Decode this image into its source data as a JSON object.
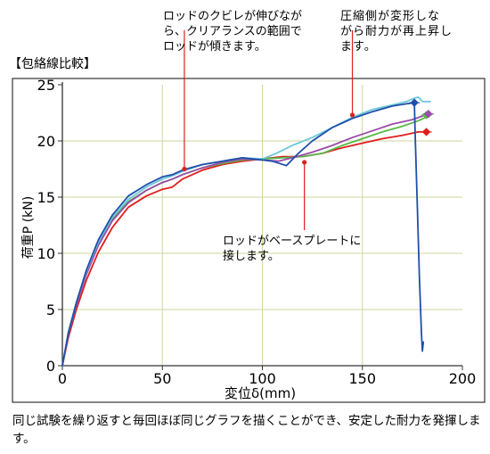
{
  "chart_data": {
    "type": "line",
    "title": "【包絡線比較】",
    "xlabel": "変位δ(mm)",
    "ylabel": "荷重P (kN)",
    "xlim": [
      0,
      200
    ],
    "ylim": [
      0,
      25
    ],
    "x_ticks": [
      "0",
      "50",
      "100",
      "150",
      "200"
    ],
    "y_ticks": [
      "0",
      "5",
      "10",
      "15",
      "20",
      "25"
    ],
    "grid": true,
    "series": [
      {
        "color": "#e01e1e",
        "points": [
          [
            0,
            0
          ],
          [
            3,
            2.5
          ],
          [
            7,
            5
          ],
          [
            12,
            7.6
          ],
          [
            18,
            10.1
          ],
          [
            25,
            12.3
          ],
          [
            33,
            14.1
          ],
          [
            42,
            15.1
          ],
          [
            50,
            15.7
          ],
          [
            55,
            15.9
          ],
          [
            60,
            16.6
          ],
          [
            70,
            17.4
          ],
          [
            80,
            17.9
          ],
          [
            90,
            18.2
          ],
          [
            100,
            18.4
          ],
          [
            110,
            18.6
          ],
          [
            120,
            18.6
          ],
          [
            130,
            18.9
          ],
          [
            140,
            19.4
          ],
          [
            150,
            19.8
          ],
          [
            160,
            20.2
          ],
          [
            170,
            20.5
          ],
          [
            178,
            20.8
          ],
          [
            183,
            20.8
          ]
        ]
      },
      {
        "color": "#58b848",
        "points": [
          [
            0,
            0
          ],
          [
            3,
            3
          ],
          [
            7,
            5.6
          ],
          [
            12,
            8.3
          ],
          [
            18,
            10.9
          ],
          [
            25,
            13
          ],
          [
            33,
            14.6
          ],
          [
            42,
            15.6
          ],
          [
            50,
            16.3
          ],
          [
            55,
            16.6
          ],
          [
            60,
            17
          ],
          [
            70,
            17.6
          ],
          [
            80,
            18
          ],
          [
            90,
            18.3
          ],
          [
            100,
            18.4
          ],
          [
            110,
            18.5
          ],
          [
            120,
            18.6
          ],
          [
            130,
            18.9
          ],
          [
            140,
            19.6
          ],
          [
            150,
            20.2
          ],
          [
            160,
            20.8
          ],
          [
            170,
            21.3
          ],
          [
            178,
            21.8
          ],
          [
            183,
            22.2
          ]
        ]
      },
      {
        "color": "#9a4ca8",
        "points": [
          [
            0,
            0
          ],
          [
            3,
            2.8
          ],
          [
            7,
            5.4
          ],
          [
            12,
            8.1
          ],
          [
            18,
            10.7
          ],
          [
            25,
            12.9
          ],
          [
            33,
            14.5
          ],
          [
            42,
            15.6
          ],
          [
            50,
            16.3
          ],
          [
            55,
            16.6
          ],
          [
            60,
            17
          ],
          [
            70,
            17.6
          ],
          [
            80,
            18.1
          ],
          [
            90,
            18.4
          ],
          [
            100,
            18.3
          ],
          [
            108,
            18.2
          ],
          [
            115,
            18.5
          ],
          [
            125,
            19
          ],
          [
            135,
            19.6
          ],
          [
            145,
            20.3
          ],
          [
            155,
            20.9
          ],
          [
            165,
            21.5
          ],
          [
            175,
            21.9
          ],
          [
            183,
            22.4
          ]
        ]
      },
      {
        "color": "#6cc8dc",
        "points": [
          [
            0,
            0
          ],
          [
            3,
            2.9
          ],
          [
            7,
            5.6
          ],
          [
            12,
            8.4
          ],
          [
            18,
            11
          ],
          [
            25,
            13.2
          ],
          [
            33,
            14.8
          ],
          [
            42,
            15.9
          ],
          [
            50,
            16.6
          ],
          [
            55,
            16.9
          ],
          [
            60,
            17.3
          ],
          [
            70,
            17.9
          ],
          [
            80,
            18.2
          ],
          [
            90,
            18.5
          ],
          [
            100,
            18.4
          ],
          [
            107,
            18.9
          ],
          [
            115,
            19.6
          ],
          [
            125,
            20.3
          ],
          [
            135,
            21.2
          ],
          [
            145,
            22.1
          ],
          [
            155,
            22.8
          ],
          [
            165,
            23.2
          ],
          [
            172,
            23.5
          ],
          [
            176,
            23.8
          ],
          [
            178,
            23.9
          ],
          [
            180,
            23.5
          ],
          [
            184,
            23.5
          ]
        ]
      },
      {
        "color": "#1f4faa",
        "points": [
          [
            0,
            0
          ],
          [
            3,
            2.9
          ],
          [
            7,
            5.6
          ],
          [
            12,
            8.5
          ],
          [
            18,
            11.2
          ],
          [
            25,
            13.4
          ],
          [
            33,
            15.1
          ],
          [
            42,
            16.1
          ],
          [
            50,
            16.8
          ],
          [
            55,
            17
          ],
          [
            60,
            17.4
          ],
          [
            70,
            17.9
          ],
          [
            80,
            18.2
          ],
          [
            90,
            18.5
          ],
          [
            100,
            18.3
          ],
          [
            105,
            18.2
          ],
          [
            112,
            17.8
          ],
          [
            118,
            18.9
          ],
          [
            125,
            20
          ],
          [
            135,
            21.2
          ],
          [
            145,
            22
          ],
          [
            155,
            22.6
          ],
          [
            165,
            23.1
          ],
          [
            172,
            23.3
          ],
          [
            176,
            23.4
          ],
          [
            176.5,
            20
          ],
          [
            177.5,
            14
          ],
          [
            178.5,
            8
          ],
          [
            179.5,
            3
          ],
          [
            180,
            1.3
          ],
          [
            180.5,
            2.1
          ]
        ]
      }
    ],
    "markers": [
      {
        "x": 176,
        "y": 23.4,
        "color": "#1f4faa"
      },
      {
        "x": 182,
        "y": 20.8,
        "color": "#e01e1e"
      },
      {
        "x": 182,
        "y": 22.3,
        "color": "#58b848"
      },
      {
        "x": 183,
        "y": 22.4,
        "color": "#9a4ca8"
      }
    ],
    "annotations": [
      {
        "lines": [
          "ロッドのクビレが伸びなが",
          "ら、クリアランスの範囲で",
          "ロッドが傾きます。"
        ],
        "point": [
          61,
          17.5
        ],
        "dir": "up"
      },
      {
        "lines": [
          "圧縮側が変形しな",
          "がら耐力が再上昇し",
          "ます。"
        ],
        "point": [
          145,
          22.3
        ],
        "dir": "up"
      },
      {
        "lines": [
          "ロッドがベースプレートに",
          "接します。"
        ],
        "point": [
          121,
          18.1
        ],
        "dir": "down"
      }
    ]
  },
  "caption": "同じ試験を繰り返すと毎回ほぼ同じグラフを描くことができ、安定した耐力を発揮します。",
  "colors": {
    "grid": "#cfd79a",
    "frame": "#333333",
    "annotation_line": "#e01e1e"
  }
}
